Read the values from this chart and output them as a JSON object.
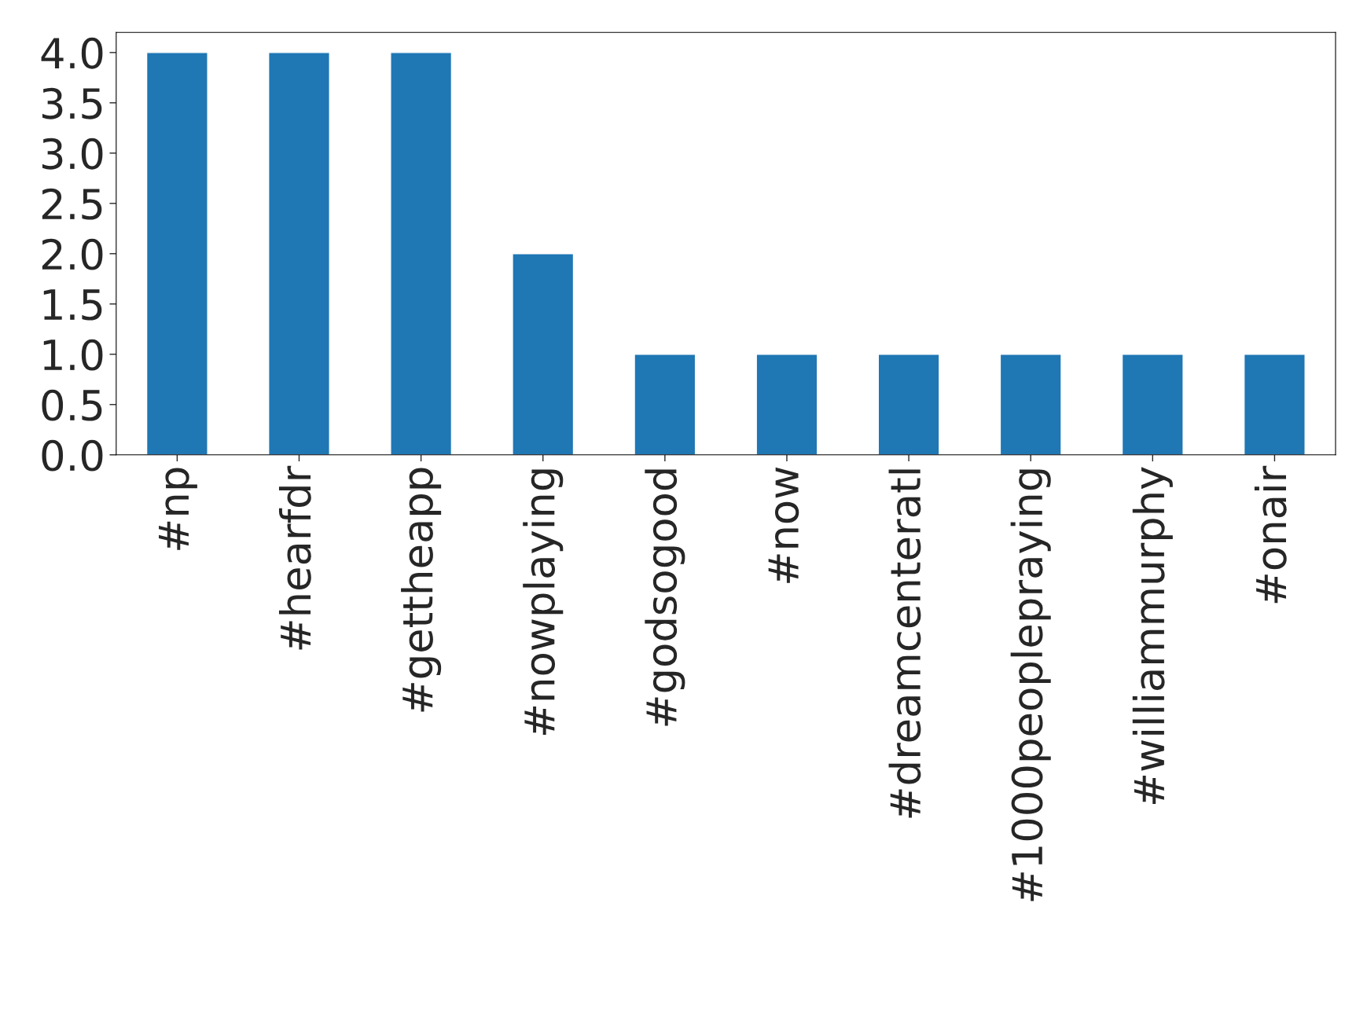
{
  "chart_data": {
    "type": "bar",
    "categories": [
      "#np",
      "#hearfdr",
      "#gettheapp",
      "#nowplaying",
      "#godsogood",
      "#now",
      "#dreamcenteratl",
      "#1000peoplepraying",
      "#williammurphy",
      "#onair"
    ],
    "values": [
      4,
      4,
      4,
      2,
      1,
      1,
      1,
      1,
      1,
      1
    ],
    "color": "#1f77b4",
    "ylim": [
      0,
      4.2
    ],
    "yticks": [
      {
        "value": 0,
        "label": "0.0"
      },
      {
        "value": 0.5,
        "label": "0.5"
      },
      {
        "value": 1,
        "label": "1.0"
      },
      {
        "value": 1.5,
        "label": "1.5"
      },
      {
        "value": 2,
        "label": "2.0"
      },
      {
        "value": 2.5,
        "label": "2.5"
      },
      {
        "value": 3,
        "label": "3.0"
      },
      {
        "value": 3.5,
        "label": "3.5"
      },
      {
        "value": 4,
        "label": "4.0"
      }
    ],
    "grid": false,
    "legend": false
  }
}
